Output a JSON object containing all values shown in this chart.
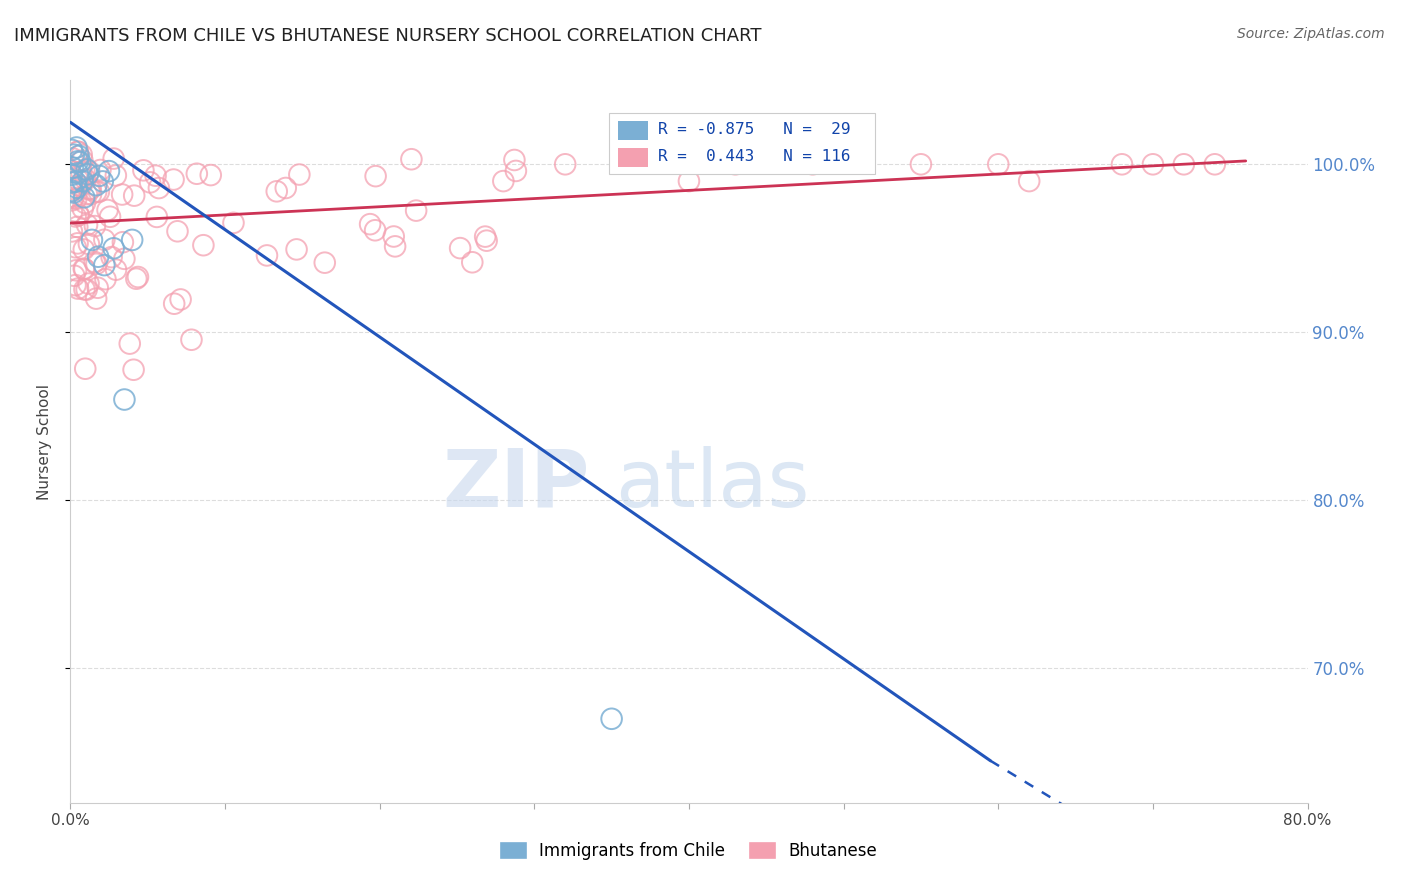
{
  "title": "IMMIGRANTS FROM CHILE VS BHUTANESE NURSERY SCHOOL CORRELATION CHART",
  "source": "Source: ZipAtlas.com",
  "ylabel_left": "Nursery School",
  "blue_R": -0.875,
  "blue_N": 29,
  "pink_R": 0.443,
  "pink_N": 116,
  "blue_color": "#7BAFD4",
  "pink_color": "#F4A0B0",
  "blue_line_color": "#2255BB",
  "pink_line_color": "#CC3355",
  "legend_label_blue": "Immigrants from Chile",
  "legend_label_pink": "Bhutanese",
  "xlim": [
    0.0,
    0.8
  ],
  "ylim": [
    0.62,
    1.05
  ],
  "watermark_zip": "ZIP",
  "watermark_atlas": "atlas",
  "background_color": "#FFFFFF",
  "grid_color": "#DDDDDD",
  "right_tick_color": "#5588CC"
}
